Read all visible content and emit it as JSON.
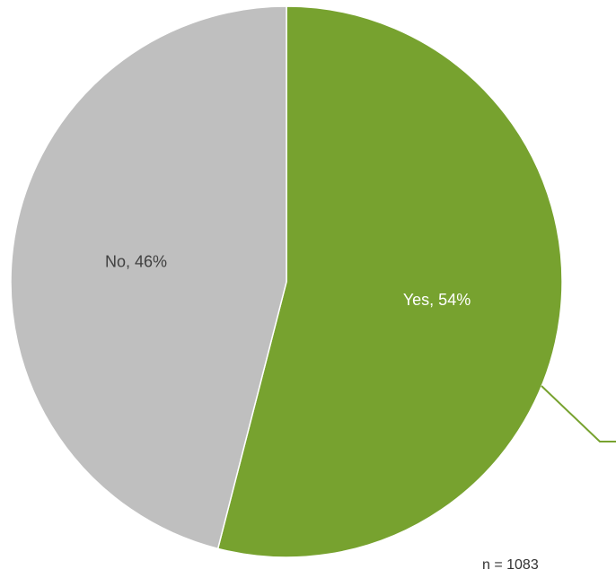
{
  "chart_data": {
    "type": "pie",
    "slices": [
      {
        "label": "Yes, 54%",
        "category": "Yes",
        "value": 54,
        "color": "#77A22F",
        "label_color": "#FFFFFF"
      },
      {
        "label": "No, 46%",
        "category": "No",
        "value": 46,
        "color": "#BFBFBF",
        "label_color": "#404040"
      }
    ],
    "start_angle_deg": 0,
    "direction": "clockwise",
    "legend": "none"
  },
  "note": "n = 1083",
  "colors": {
    "yes": "#77A22F",
    "no": "#BFBFBF",
    "leader_line": "#77A22F",
    "background": "#FFFFFF"
  }
}
